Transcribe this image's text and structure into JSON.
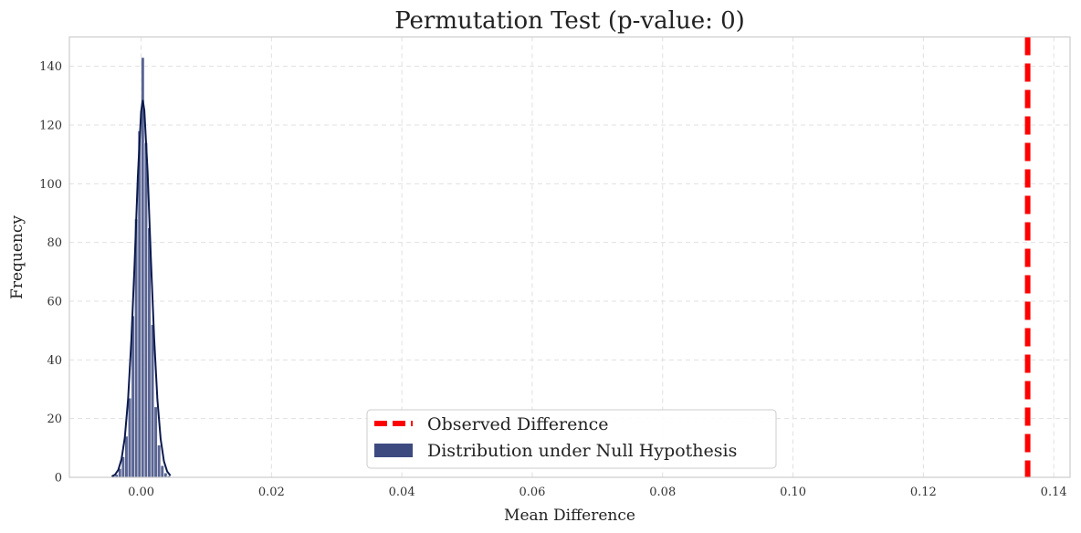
{
  "chart_data": {
    "type": "bar",
    "title": "Permutation Test (p-value: 0)",
    "xlabel": "Mean Difference",
    "ylabel": "Frequency",
    "xlim": [
      -0.011,
      0.1425
    ],
    "ylim": [
      0,
      150
    ],
    "xticks": [
      0.0,
      0.02,
      0.04,
      0.06,
      0.08,
      0.1,
      0.12,
      0.14
    ],
    "xtick_labels": [
      "0.00",
      "0.02",
      "0.04",
      "0.06",
      "0.08",
      "0.10",
      "0.12",
      "0.14"
    ],
    "yticks": [
      0,
      20,
      40,
      60,
      80,
      100,
      120,
      140
    ],
    "ytick_labels": [
      "0",
      "20",
      "40",
      "60",
      "80",
      "100",
      "120",
      "140"
    ],
    "grid": true,
    "legend_position": "lower-center",
    "bin_width": 0.0005,
    "histogram": {
      "name": "Distribution under Null Hypothesis",
      "color": "#3d4a80",
      "bin_centers": [
        -0.00425,
        -0.00375,
        -0.00325,
        -0.00275,
        -0.00225,
        -0.00175,
        -0.00125,
        -0.00075,
        -0.00025,
        0.00025,
        0.00075,
        0.00125,
        0.00175,
        0.00225,
        0.00275,
        0.00325,
        0.00375,
        0.00425
      ],
      "values": [
        0.5,
        1,
        3,
        7,
        14,
        27,
        55,
        88,
        118,
        143,
        114,
        85,
        52,
        24,
        11,
        4,
        1.5,
        0.5
      ]
    },
    "kde": {
      "color": "#0b1a4d",
      "x": [
        -0.0045,
        -0.004,
        -0.0035,
        -0.003,
        -0.0025,
        -0.002,
        -0.0015,
        -0.001,
        -0.0005,
        0.0,
        0.00025,
        0.0005,
        0.001,
        0.0015,
        0.002,
        0.0025,
        0.003,
        0.0035,
        0.004,
        0.0045
      ],
      "y": [
        0.3,
        0.9,
        2.5,
        6.2,
        13.5,
        26.5,
        46.5,
        72.5,
        102.5,
        124.5,
        128.5,
        125,
        104,
        74.5,
        47.5,
        26.5,
        13,
        5.5,
        2,
        0.6
      ]
    },
    "observed_line": {
      "name": "Observed Difference",
      "x": 0.136,
      "color": "#ff0000",
      "style": "dashed"
    }
  }
}
